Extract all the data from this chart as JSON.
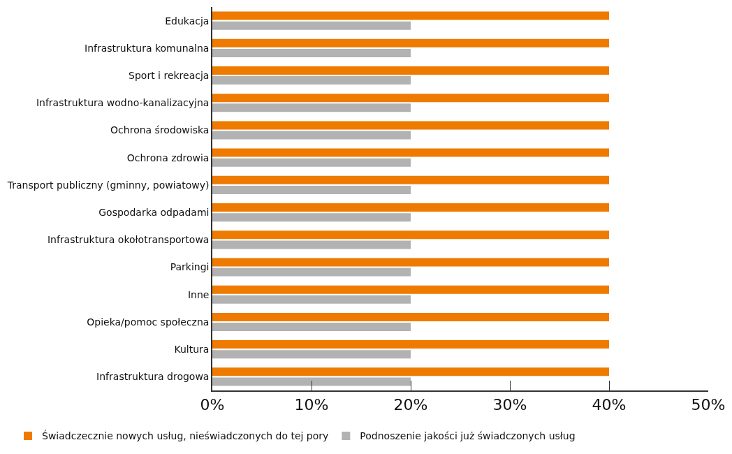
{
  "chart_data": {
    "type": "bar",
    "orientation": "horizontal",
    "categories": [
      "Edukacja",
      "Infrastruktura komunalna",
      "Sport i rekreacja",
      "Infrastruktura wodno-kanalizacyjna",
      "Ochrona środowiska",
      "Ochrona zdrowia",
      "Transport publiczny (gminny, powiatowy)",
      "Gospodarka odpadami",
      "Infrastruktura okołotransportowa",
      "Parkingi",
      "Inne",
      "Opieka/pomoc społeczna",
      "Kultura",
      "Infrastruktura drogowa"
    ],
    "series": [
      {
        "name": "Świadczecznie nowych usług, nieświadczonych do tej pory",
        "color": "#ee7b00",
        "values": [
          40,
          40,
          40,
          40,
          40,
          40,
          40,
          40,
          40,
          40,
          40,
          40,
          40,
          40
        ]
      },
      {
        "name": "Podnoszenie jakości już świadczonych usług",
        "color": "#b2b2b2",
        "values": [
          20,
          20,
          20,
          20,
          20,
          20,
          20,
          20,
          20,
          20,
          20,
          20,
          20,
          20
        ]
      }
    ],
    "xlim": [
      0,
      50
    ],
    "xticks": [
      {
        "value": 0,
        "label": "0%"
      },
      {
        "value": 10,
        "label": "10%"
      },
      {
        "value": 20,
        "label": "20%"
      },
      {
        "value": 30,
        "label": "30%"
      },
      {
        "value": 40,
        "label": "40%"
      },
      {
        "value": 50,
        "label": "50%"
      }
    ],
    "legend": "bottom"
  }
}
